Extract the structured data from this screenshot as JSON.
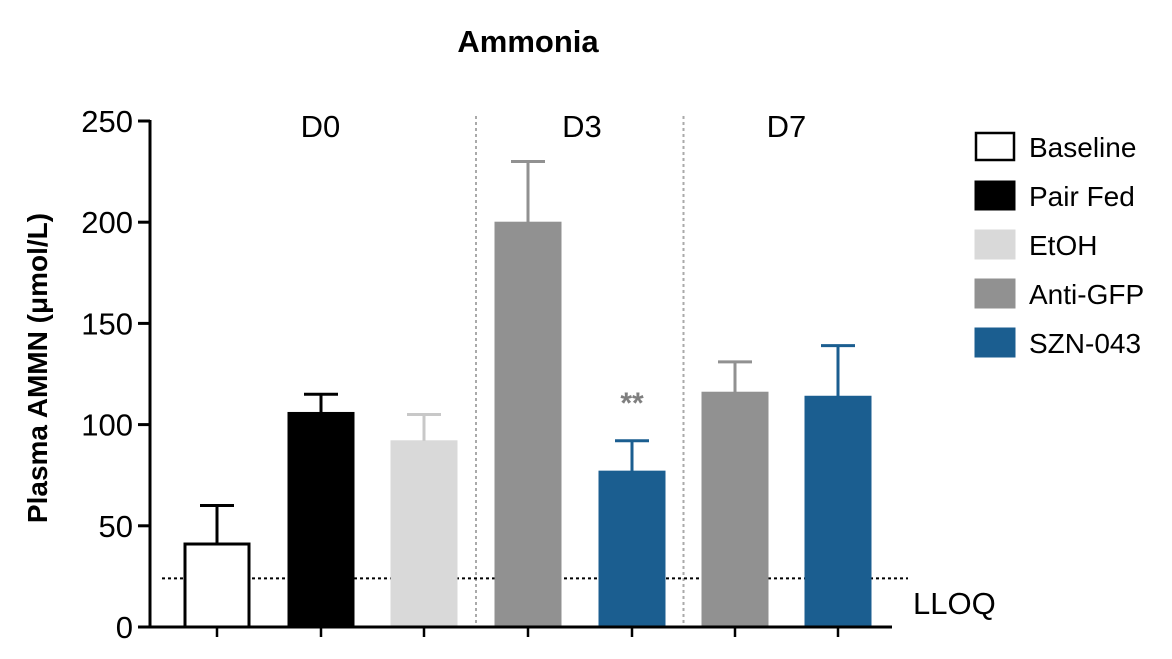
{
  "chart_data": {
    "type": "bar",
    "title": "Ammonia",
    "ylabel": "Plasma AMMN (μmol/L)",
    "xlabel": "",
    "ylim": [
      0,
      250
    ],
    "yticks": [
      0,
      50,
      100,
      150,
      200,
      250
    ],
    "groups": [
      {
        "label": "D0",
        "bars": [
          {
            "series": "Baseline",
            "value": 41,
            "error": 19
          },
          {
            "series": "Pair Fed",
            "value": 106,
            "error": 9
          },
          {
            "series": "EtOH",
            "value": 92,
            "error": 13
          }
        ]
      },
      {
        "label": "D3",
        "bars": [
          {
            "series": "Anti-GFP",
            "value": 200,
            "error": 30
          },
          {
            "series": "SZN-043",
            "value": 77,
            "error": 15,
            "annotation": "**"
          }
        ]
      },
      {
        "label": "D7",
        "bars": [
          {
            "series": "Anti-GFP",
            "value": 116,
            "error": 15
          },
          {
            "series": "SZN-043",
            "value": 114,
            "error": 25
          }
        ]
      }
    ],
    "series": [
      {
        "name": "Baseline",
        "color": "#ffffff",
        "stroke": "#000000"
      },
      {
        "name": "Pair Fed",
        "color": "#000000",
        "stroke": "#000000"
      },
      {
        "name": "EtOH",
        "color": "#d9d9d9",
        "stroke": "#d9d9d9"
      },
      {
        "name": "Anti-GFP",
        "color": "#919191",
        "stroke": "#919191"
      },
      {
        "name": "SZN-043",
        "color": "#1b5e90",
        "stroke": "#1b5e90"
      }
    ],
    "reference_line": {
      "label": "LLOQ",
      "value": 24
    },
    "legend_position": "right",
    "colors": {
      "error_baseline": "#000000",
      "error_pairfed": "#000000",
      "error_etoh": "#c8c8c8",
      "error_antigfp": "#919191",
      "error_szn": "#1b5e90",
      "sig": "#7f7f7f",
      "divider": "#aaaaaa"
    }
  }
}
